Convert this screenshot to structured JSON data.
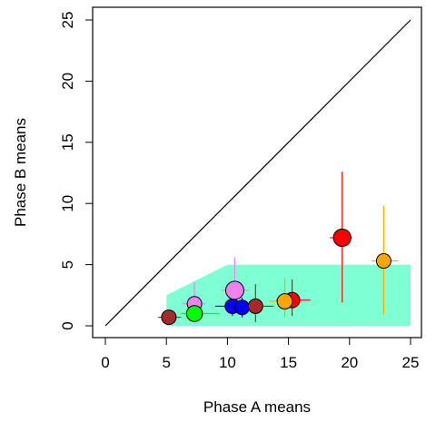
{
  "chart_data": {
    "type": "scatter",
    "xlabel": "Phase A means",
    "ylabel": "Phase B  means",
    "xlim": [
      0,
      25
    ],
    "ylim": [
      0,
      25
    ],
    "x_ticks": [
      "0",
      "5",
      "10",
      "15",
      "20",
      "25"
    ],
    "y_ticks": [
      "0",
      "5",
      "10",
      "15",
      "20",
      "25"
    ],
    "grid": false,
    "reference_line": {
      "from": [
        0,
        0
      ],
      "to": [
        25,
        25
      ],
      "color": "#000000"
    },
    "shaded_region": {
      "color": "#7fffd4",
      "polygon": [
        [
          5,
          0
        ],
        [
          5,
          2.5
        ],
        [
          10,
          5
        ],
        [
          25,
          5
        ],
        [
          25,
          0
        ]
      ]
    },
    "points": [
      {
        "x": 5.2,
        "y": 0.7,
        "color": "#a52a2a",
        "size": 1.0,
        "x_err": [
          4.3,
          6.2
        ],
        "y_err": [
          0.5,
          1.0
        ]
      },
      {
        "x": 7.3,
        "y": 1.8,
        "color": "#ee82ee",
        "size": 1.0,
        "x_err": [
          6.3,
          8.2
        ],
        "y_err": [
          0.7,
          3.6
        ]
      },
      {
        "x": 7.3,
        "y": 1.0,
        "color": "#00ff00",
        "size": 1.1,
        "x_err": [
          6.2,
          9.3
        ],
        "y_err": [
          0.6,
          1.5
        ]
      },
      {
        "x": 10.4,
        "y": 1.6,
        "color": "#0000ff",
        "size": 1.0,
        "x_err": [
          9.0,
          11.5
        ],
        "y_err": [
          0.8,
          2.4
        ]
      },
      {
        "x": 11.2,
        "y": 1.5,
        "color": "#0000ff",
        "size": 1.0,
        "x_err": [
          10.4,
          12.2
        ],
        "y_err": [
          0.7,
          2.3
        ]
      },
      {
        "x": 10.6,
        "y": 2.9,
        "color": "#ee82ee",
        "size": 1.25,
        "x_err": [
          9.5,
          11.8
        ],
        "y_err": [
          1.2,
          5.6
        ]
      },
      {
        "x": 12.3,
        "y": 1.6,
        "color": "#a52a2a",
        "size": 1.0,
        "x_err": [
          10.9,
          13.8
        ],
        "y_err": [
          0.3,
          3.4
        ]
      },
      {
        "x": 15.3,
        "y": 2.1,
        "color": "#ff0000",
        "size": 1.05,
        "x_err": [
          14.0,
          16.8
        ],
        "y_err": [
          0.8,
          3.8
        ]
      },
      {
        "x": 14.7,
        "y": 2.0,
        "color": "#ffa500",
        "size": 1.05,
        "x_err": [
          13.4,
          16.1
        ],
        "y_err": [
          0.7,
          3.9
        ]
      },
      {
        "x": 19.4,
        "y": 7.2,
        "color": "#ff0000",
        "size": 1.2,
        "x_err": [
          18.4,
          20.2
        ],
        "y_err": [
          1.9,
          12.6
        ]
      },
      {
        "x": 22.8,
        "y": 5.3,
        "color": "#ffa500",
        "size": 1.0,
        "x_err": [
          21.8,
          24.0
        ],
        "y_err": [
          0.9,
          9.8
        ]
      }
    ]
  }
}
